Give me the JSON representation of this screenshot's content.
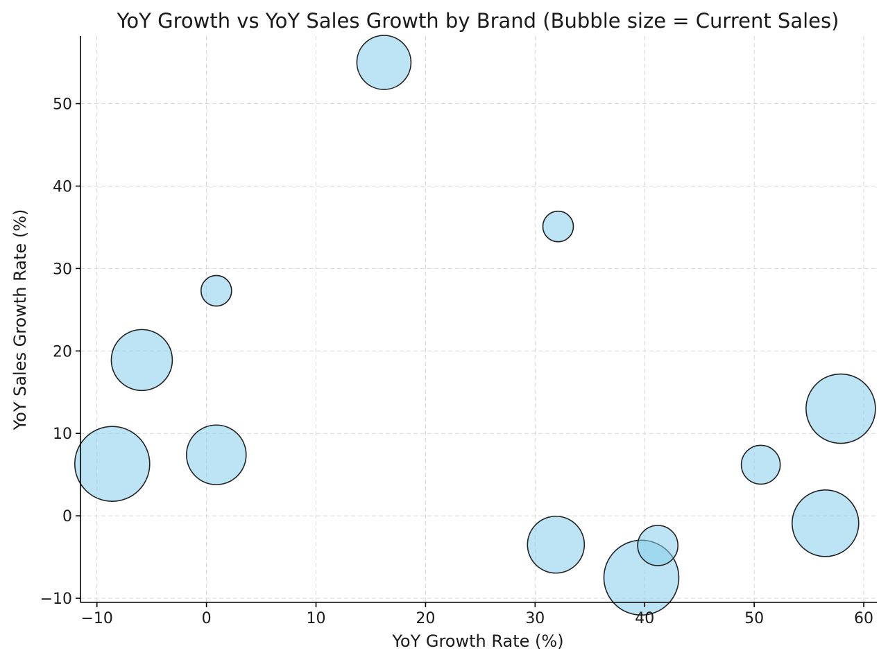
{
  "chart_data": {
    "type": "scatter",
    "title": "YoY Growth vs YoY Sales Growth by Brand (Bubble size = Current Sales)",
    "xlabel": "YoY Growth Rate (%)",
    "ylabel": "YoY Sales Growth Rate (%)",
    "xlim": [
      -11.5,
      61.2
    ],
    "ylim": [
      -10.5,
      58.2
    ],
    "xticks": [
      -10,
      0,
      10,
      20,
      30,
      40,
      50,
      60
    ],
    "yticks": [
      -10,
      0,
      10,
      20,
      30,
      40,
      50
    ],
    "xtick_labels": [
      "−10",
      "0",
      "10",
      "20",
      "30",
      "40",
      "50",
      "60"
    ],
    "ytick_labels": [
      "−10",
      "0",
      "10",
      "20",
      "30",
      "40",
      "50"
    ],
    "grid": true,
    "bubble_color": "#87CEEB",
    "edge_color": "#222222",
    "points": [
      {
        "x": -8.6,
        "y": 6.3,
        "size": 54
      },
      {
        "x": -5.9,
        "y": 18.9,
        "size": 44
      },
      {
        "x": 0.9,
        "y": 27.3,
        "size": 22
      },
      {
        "x": 0.9,
        "y": 7.4,
        "size": 43
      },
      {
        "x": 16.2,
        "y": 55.0,
        "size": 39
      },
      {
        "x": 32.1,
        "y": 35.1,
        "size": 22
      },
      {
        "x": 31.9,
        "y": -3.5,
        "size": 41
      },
      {
        "x": 39.7,
        "y": -7.5,
        "size": 54
      },
      {
        "x": 41.2,
        "y": -3.6,
        "size": 29
      },
      {
        "x": 50.6,
        "y": 6.2,
        "size": 28
      },
      {
        "x": 56.5,
        "y": -0.9,
        "size": 48
      },
      {
        "x": 57.9,
        "y": 13.0,
        "size": 50
      }
    ]
  }
}
